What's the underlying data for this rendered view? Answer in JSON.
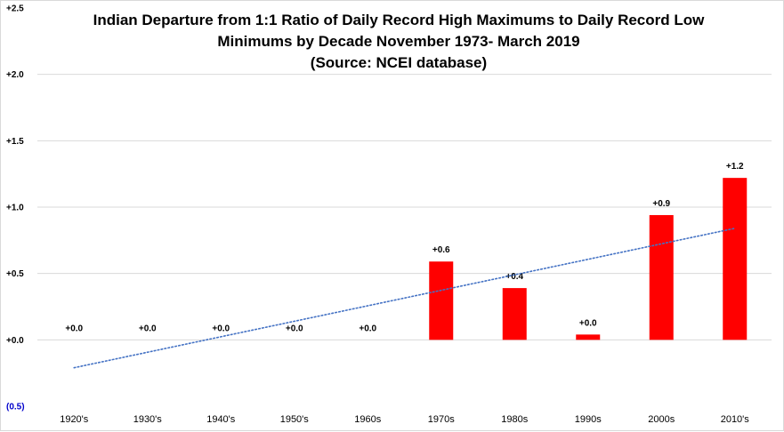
{
  "chart_data": {
    "type": "bar",
    "title_lines": [
      "Indian Departure from 1:1 Ratio of Daily Record High Maximums to Daily Record Low",
      "Minimums by Decade November 1973- March 2019",
      "(Source: NCEI database)"
    ],
    "xlabel": "",
    "ylabel": "",
    "categories": [
      "1920's",
      "1930's",
      "1940's",
      "1950's",
      "1960s",
      "1970s",
      "1980s",
      "1990s",
      "2000s",
      "2010's"
    ],
    "values": [
      0.0,
      0.0,
      0.0,
      0.0,
      0.0,
      0.59,
      0.39,
      0.04,
      0.94,
      1.22
    ],
    "data_labels": [
      "+0.0",
      "+0.0",
      "+0.0",
      "+0.0",
      "+0.0",
      "+0.6",
      "+0.4",
      "+0.0",
      "+0.9",
      "+1.2"
    ],
    "ylim": [
      -0.5,
      2.5
    ],
    "yticks": [
      2.5,
      2.0,
      1.5,
      1.0,
      0.5,
      0.0,
      -0.5
    ],
    "ytick_labels": [
      "+2.5",
      "+2.0",
      "+1.5",
      "+1.0",
      "+0.5",
      "+0.0",
      "(0.5)"
    ],
    "grid": true,
    "legend": "none",
    "trendline": {
      "type": "linear",
      "style": "dotted",
      "start": -0.21,
      "end": 0.84
    },
    "colors": {
      "bar": "#ff0000",
      "trendline": "#4472c4",
      "grid": "#d9d9d9",
      "negative_tick": "#0000cc"
    }
  }
}
